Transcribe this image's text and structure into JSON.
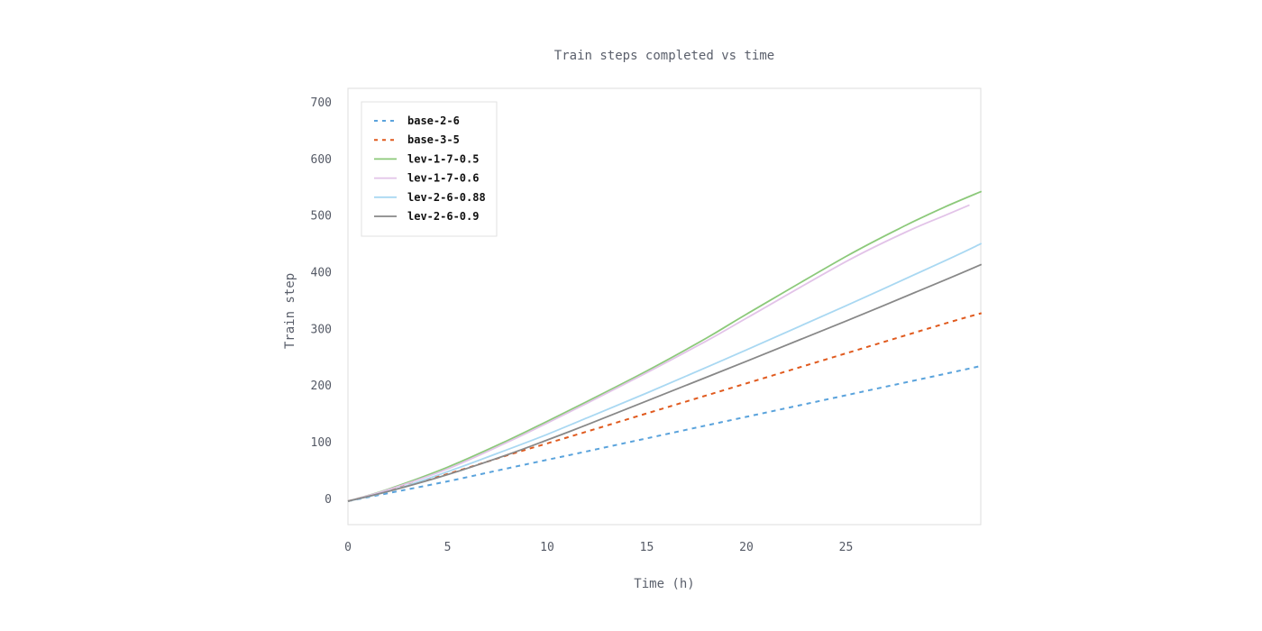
{
  "chart_data": {
    "type": "line",
    "title": "Train steps completed vs time",
    "xlabel": "Time (h)",
    "ylabel": "Train step",
    "xlim": [
      0,
      32
    ],
    "ylim": [
      -5,
      700
    ],
    "x_ticks": [
      0,
      5,
      10,
      15,
      20,
      25
    ],
    "y_ticks": [
      0,
      100,
      200,
      300,
      400,
      500,
      600,
      700
    ],
    "grid": false,
    "legend_position": "top-left",
    "series": [
      {
        "name": "base-2-6",
        "color": "#5aa3dc",
        "dash": "dashed",
        "x": [
          0,
          2,
          5,
          8,
          10,
          12,
          15,
          20,
          25,
          30,
          31.8
        ],
        "y": [
          -5,
          9,
          30,
          53,
          68,
          83,
          106,
          144,
          182,
          220,
          234
        ]
      },
      {
        "name": "base-3-5",
        "color": "#e05a1e",
        "dash": "dashed",
        "x": [
          0,
          2,
          5,
          8,
          10,
          12,
          15,
          20,
          25,
          30,
          31.8
        ],
        "y": [
          -5,
          14,
          43,
          76,
          97,
          118,
          150,
          203,
          256,
          309,
          327
        ]
      },
      {
        "name": "lev-1-7-0.5",
        "color": "#8cc97a",
        "dash": "solid",
        "x": [
          0,
          2,
          5,
          8,
          10,
          12,
          15,
          18,
          20,
          25,
          28,
          30,
          31.8
        ],
        "y": [
          -5,
          16,
          55,
          102,
          136,
          171,
          225,
          283,
          325,
          427,
          482,
          515,
          542
        ]
      },
      {
        "name": "lev-1-7-0.6",
        "color": "#e2c3e8",
        "dash": "solid",
        "x": [
          0,
          2,
          5,
          8,
          10,
          12,
          15,
          18,
          20,
          25,
          28,
          30,
          31.2
        ],
        "y": [
          -5,
          15,
          52,
          99,
          133,
          168,
          222,
          278,
          318,
          418,
          470,
          500,
          518
        ]
      },
      {
        "name": "lev-2-6-0.88",
        "color": "#a9d8f2",
        "dash": "solid",
        "x": [
          0,
          2,
          5,
          8,
          10,
          12,
          15,
          20,
          25,
          30,
          31.8
        ],
        "y": [
          -5,
          12,
          47,
          86,
          113,
          142,
          186,
          262,
          340,
          420,
          450
        ]
      },
      {
        "name": "lev-2-6-0.9",
        "color": "#888888",
        "dash": "solid",
        "x": [
          0,
          2,
          5,
          8,
          10,
          12,
          15,
          20,
          25,
          30,
          31.8
        ],
        "y": [
          -5,
          12,
          42,
          77,
          103,
          130,
          172,
          242,
          313,
          386,
          413
        ]
      }
    ]
  }
}
